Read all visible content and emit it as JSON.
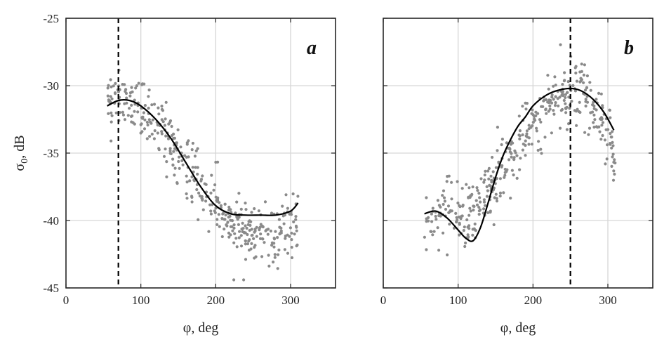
{
  "chart_data": [
    {
      "type": "scatter",
      "panel_label": "a",
      "xlabel": "φ, deg",
      "ylabel_main": "σ",
      "ylabel_sub": "0",
      "ylabel_tail": ", dB",
      "xlim": [
        0,
        360
      ],
      "ylim": [
        -45,
        -25
      ],
      "xticks": [
        0,
        100,
        200,
        300
      ],
      "yticks": [
        -25,
        -30,
        -35,
        -40,
        -45
      ],
      "grid": true,
      "marker_color": "#8a8a8a",
      "fit_color": "#000000",
      "vline_x": 70,
      "fit_curve": {
        "x": [
          55,
          70,
          85,
          100,
          120,
          140,
          160,
          180,
          200,
          220,
          240,
          260,
          280,
          300,
          310
        ],
        "y": [
          -31.5,
          -31.1,
          -31.1,
          -31.5,
          -32.5,
          -33.9,
          -35.7,
          -37.5,
          -38.9,
          -39.5,
          -39.6,
          -39.6,
          -39.6,
          -39.3,
          -38.7
        ]
      },
      "scatter_trend": {
        "x": [
          55,
          70,
          90,
          110,
          130,
          150,
          170,
          190,
          210,
          230,
          250,
          270,
          290,
          310
        ],
        "y": [
          -31.2,
          -30.8,
          -31.3,
          -32.0,
          -33.0,
          -34.8,
          -36.5,
          -38.0,
          -39.5,
          -40.5,
          -41.0,
          -41.3,
          -40.8,
          -40.5
        ]
      },
      "scatter_spread": 1.1,
      "scatter_count": 420
    },
    {
      "type": "scatter",
      "panel_label": "b",
      "xlabel": "φ, deg",
      "xlim": [
        0,
        360
      ],
      "ylim": [
        -45,
        -25
      ],
      "xticks": [
        0,
        100,
        200,
        300
      ],
      "yticks": [
        -25,
        -30,
        -35,
        -40,
        -45
      ],
      "grid": true,
      "marker_color": "#8a8a8a",
      "fit_color": "#000000",
      "vline_x": 250,
      "fit_curve": {
        "x": [
          55,
          70,
          85,
          100,
          110,
          120,
          130,
          140,
          150,
          160,
          170,
          180,
          190,
          200,
          215,
          230,
          250,
          265,
          280,
          295,
          308
        ],
        "y": [
          -39.5,
          -39.3,
          -39.8,
          -40.7,
          -41.3,
          -41.5,
          -40.5,
          -38.7,
          -36.8,
          -35.2,
          -34.0,
          -33.0,
          -32.3,
          -31.5,
          -30.8,
          -30.4,
          -30.2,
          -30.4,
          -31.0,
          -32.0,
          -33.3
        ]
      },
      "scatter_trend": {
        "x": [
          55,
          70,
          90,
          110,
          130,
          150,
          170,
          190,
          210,
          230,
          250,
          270,
          290,
          310
        ],
        "y": [
          -41.0,
          -39.5,
          -39.0,
          -40.0,
          -39.0,
          -37.0,
          -35.5,
          -33.5,
          -32.0,
          -30.8,
          -30.3,
          -30.8,
          -32.5,
          -35.5
        ]
      },
      "scatter_spread": 1.2,
      "scatter_count": 420
    }
  ]
}
